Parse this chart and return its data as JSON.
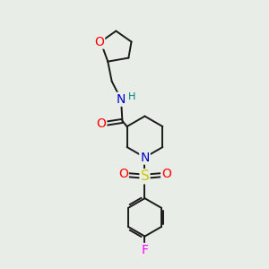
{
  "bg_color": "#e8ede8",
  "line_color": "#1a1a1a",
  "atom_colors": {
    "O": "#ff0000",
    "N": "#0000cc",
    "S": "#cccc00",
    "F": "#ff00ff",
    "H_on_N": "#008080",
    "C": "#1a1a1a"
  },
  "font_size_atom": 10,
  "font_size_h": 8,
  "lw": 1.4
}
